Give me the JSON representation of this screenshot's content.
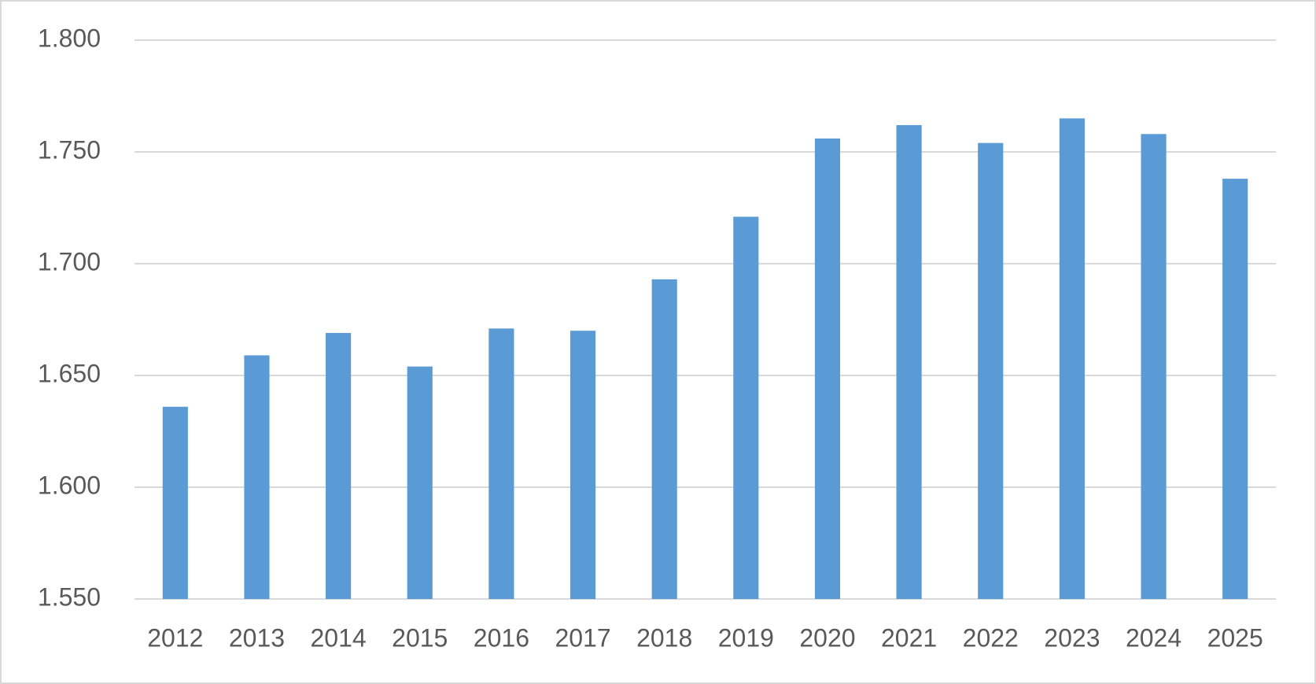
{
  "chart_data": {
    "type": "bar",
    "categories": [
      "2012",
      "2013",
      "2014",
      "2015",
      "2016",
      "2017",
      "2018",
      "2019",
      "2020",
      "2021",
      "2022",
      "2023",
      "2024",
      "2025"
    ],
    "values": [
      1636,
      1659,
      1669,
      1654,
      1671,
      1670,
      1693,
      1721,
      1756,
      1762,
      1754,
      1765,
      1758,
      1738
    ],
    "color": "#5b9bd5",
    "ylim": [
      1550,
      1800
    ],
    "yticks": [
      {
        "value": 1550,
        "label": "1.550"
      },
      {
        "value": 1600,
        "label": "1.600"
      },
      {
        "value": 1650,
        "label": "1.650"
      },
      {
        "value": 1700,
        "label": "1.700"
      },
      {
        "value": 1750,
        "label": "1.750"
      },
      {
        "value": 1800,
        "label": "1.800"
      }
    ],
    "grid": true
  }
}
